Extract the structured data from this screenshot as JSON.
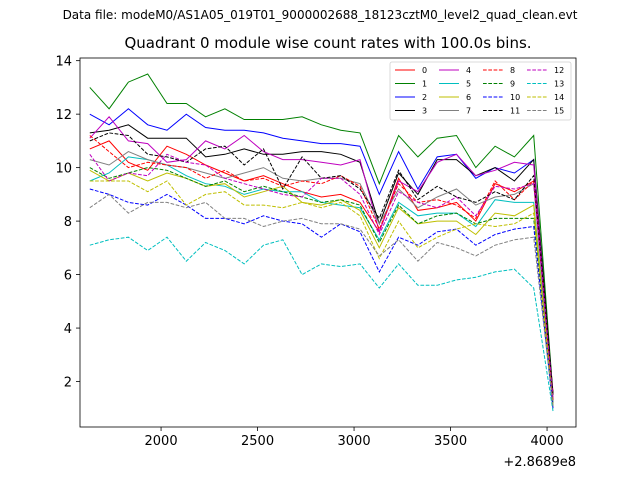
{
  "suptitle": "Data file: modeM0/AS1A05_019T01_9000002688_18123cztM0_level2_quad_clean.evt",
  "chart_data": {
    "type": "line",
    "title": "Quadrant 0 module wise count rates with 100.0s bins.",
    "offset_label": "+2.8689e8",
    "xlim": [
      1580,
      4150
    ],
    "ylim": [
      0.3,
      14.1
    ],
    "xticks": [
      2000,
      2500,
      3000,
      3500,
      4000
    ],
    "xtick_labels": [
      "2000",
      "2500",
      "3000",
      "3500",
      "4000"
    ],
    "yticks": [
      2,
      4,
      6,
      8,
      10,
      12,
      14
    ],
    "ytick_labels": [
      "2",
      "4",
      "6",
      "8",
      "10",
      "12",
      "14"
    ],
    "legend_position": "top-right",
    "x": [
      1631,
      1731,
      1831,
      1931,
      2031,
      2131,
      2231,
      2331,
      2431,
      2531,
      2631,
      2731,
      2831,
      2931,
      3031,
      3131,
      3231,
      3331,
      3431,
      3531,
      3631,
      3731,
      3831,
      3931,
      4031
    ],
    "series": [
      {
        "name": "0",
        "color": "#ff0000",
        "dash": "solid",
        "values": [
          10.7,
          11.0,
          10.2,
          9.9,
          10.8,
          10.5,
          10.1,
          9.8,
          9.5,
          9.7,
          9.4,
          9.1,
          8.9,
          9.0,
          8.7,
          7.6,
          9.6,
          8.4,
          8.5,
          8.7,
          8.0,
          9.4,
          9.1,
          9.5,
          1.6
        ]
      },
      {
        "name": "1",
        "color": "#008000",
        "dash": "solid",
        "values": [
          13.0,
          12.2,
          13.2,
          13.5,
          12.4,
          12.4,
          11.9,
          12.2,
          11.8,
          11.8,
          11.8,
          11.9,
          11.6,
          11.4,
          11.3,
          9.4,
          11.2,
          10.4,
          11.1,
          11.2,
          10.0,
          10.8,
          10.4,
          11.2,
          1.5
        ]
      },
      {
        "name": "2",
        "color": "#0000ff",
        "dash": "solid",
        "values": [
          12.0,
          11.6,
          12.2,
          11.6,
          11.4,
          12.0,
          11.5,
          11.4,
          11.4,
          11.3,
          11.1,
          11.0,
          10.9,
          10.9,
          10.8,
          9.0,
          10.6,
          9.2,
          10.4,
          10.5,
          9.6,
          10.0,
          9.8,
          10.3,
          1.3
        ]
      },
      {
        "name": "3",
        "color": "#000000",
        "dash": "solid",
        "values": [
          11.3,
          11.4,
          11.6,
          11.1,
          11.1,
          11.1,
          10.4,
          10.5,
          10.7,
          10.5,
          10.5,
          10.6,
          10.6,
          10.5,
          10.2,
          7.9,
          9.8,
          9.0,
          10.3,
          10.3,
          9.7,
          10.0,
          9.5,
          10.3,
          1.5
        ]
      },
      {
        "name": "4",
        "color": "#bf00bf",
        "dash": "solid",
        "values": [
          11.1,
          11.9,
          11.0,
          10.9,
          10.2,
          10.3,
          11.0,
          10.7,
          11.2,
          10.6,
          10.3,
          10.3,
          10.2,
          10.1,
          10.3,
          7.6,
          9.5,
          9.1,
          10.2,
          10.5,
          9.7,
          9.9,
          10.2,
          10.1,
          1.2
        ]
      },
      {
        "name": "5",
        "color": "#00bfbf",
        "dash": "solid",
        "values": [
          9.5,
          9.8,
          10.4,
          10.3,
          10.1,
          9.7,
          9.4,
          9.3,
          9.0,
          9.2,
          9.1,
          9.1,
          8.7,
          8.6,
          8.5,
          7.3,
          8.7,
          8.2,
          8.3,
          8.3,
          7.8,
          8.8,
          8.7,
          8.7,
          1.2
        ]
      },
      {
        "name": "6",
        "color": "#bfbf00",
        "dash": "solid",
        "values": [
          9.9,
          9.5,
          9.8,
          9.5,
          9.8,
          9.6,
          9.3,
          9.4,
          8.9,
          9.1,
          9.3,
          8.7,
          8.6,
          8.8,
          8.4,
          7.0,
          8.5,
          7.9,
          8.0,
          8.0,
          7.5,
          8.3,
          8.2,
          8.6,
          1.0
        ]
      },
      {
        "name": "7",
        "color": "#808080",
        "dash": "solid",
        "values": [
          10.3,
          10.1,
          10.6,
          10.3,
          10.1,
          10.0,
          9.8,
          9.6,
          9.8,
          10.0,
          9.6,
          9.5,
          9.6,
          9.6,
          9.4,
          7.9,
          9.2,
          8.5,
          8.9,
          9.2,
          8.6,
          8.9,
          9.0,
          9.4,
          1.2
        ]
      },
      {
        "name": "8",
        "color": "#ff0000",
        "dash": "dashed",
        "values": [
          11.2,
          10.6,
          10.0,
          10.2,
          10.1,
          10.0,
          9.6,
          9.9,
          9.5,
          9.6,
          9.3,
          9.5,
          9.4,
          9.7,
          9.3,
          7.7,
          9.4,
          8.7,
          8.8,
          8.6,
          8.1,
          9.5,
          8.8,
          9.5,
          1.3
        ]
      },
      {
        "name": "9",
        "color": "#008000",
        "dash": "dashed",
        "values": [
          10.0,
          9.6,
          9.8,
          10.0,
          9.9,
          9.6,
          9.3,
          9.5,
          9.1,
          9.3,
          9.1,
          8.9,
          8.7,
          8.8,
          8.6,
          7.2,
          8.6,
          7.9,
          8.2,
          8.3,
          7.9,
          8.1,
          8.1,
          8.1,
          1.1
        ]
      },
      {
        "name": "10",
        "color": "#0000ff",
        "dash": "dashed",
        "values": [
          9.2,
          9.0,
          8.7,
          8.6,
          9.0,
          8.6,
          8.1,
          8.1,
          7.9,
          8.2,
          8.0,
          7.9,
          7.4,
          7.9,
          7.6,
          6.1,
          7.4,
          7.1,
          7.6,
          7.7,
          7.1,
          7.5,
          7.7,
          7.8,
          1.0
        ]
      },
      {
        "name": "11",
        "color": "#000000",
        "dash": "dashed",
        "values": [
          11.0,
          11.3,
          11.2,
          10.5,
          10.4,
          10.2,
          10.7,
          10.8,
          10.1,
          10.7,
          9.2,
          10.4,
          9.6,
          9.7,
          9.2,
          8.1,
          9.9,
          8.8,
          9.3,
          8.9,
          8.7,
          9.1,
          8.8,
          9.7,
          1.5
        ]
      },
      {
        "name": "12",
        "color": "#bf00bf",
        "dash": "dashed",
        "values": [
          10.5,
          9.5,
          9.8,
          9.7,
          10.5,
          10.2,
          10.1,
          9.6,
          9.4,
          9.2,
          9.0,
          8.9,
          9.6,
          9.6,
          9.0,
          7.5,
          9.1,
          8.7,
          8.5,
          8.9,
          8.2,
          9.3,
          9.2,
          9.4,
          1.4
        ]
      },
      {
        "name": "13",
        "color": "#00bfbf",
        "dash": "dashed",
        "values": [
          7.1,
          7.3,
          7.4,
          6.9,
          7.4,
          6.5,
          7.2,
          6.9,
          6.4,
          7.1,
          7.3,
          6.0,
          6.4,
          6.3,
          6.4,
          5.5,
          6.4,
          5.6,
          5.6,
          5.8,
          5.9,
          6.1,
          6.2,
          5.5,
          0.9
        ]
      },
      {
        "name": "14",
        "color": "#bfbf00",
        "dash": "dashed",
        "values": [
          9.5,
          9.5,
          9.5,
          9.1,
          9.5,
          8.6,
          9.0,
          9.1,
          8.6,
          8.6,
          8.5,
          8.7,
          8.5,
          8.7,
          8.2,
          6.6,
          8.0,
          7.0,
          7.4,
          7.7,
          7.9,
          7.8,
          7.9,
          8.3,
          1.1
        ]
      },
      {
        "name": "15",
        "color": "#808080",
        "dash": "dashed",
        "values": [
          8.5,
          9.0,
          8.3,
          8.7,
          8.7,
          8.5,
          8.7,
          8.1,
          8.1,
          7.8,
          8.0,
          8.1,
          7.9,
          7.9,
          7.7,
          6.7,
          7.3,
          6.5,
          7.2,
          7.0,
          6.7,
          7.1,
          7.3,
          7.4,
          1.1
        ]
      }
    ]
  }
}
